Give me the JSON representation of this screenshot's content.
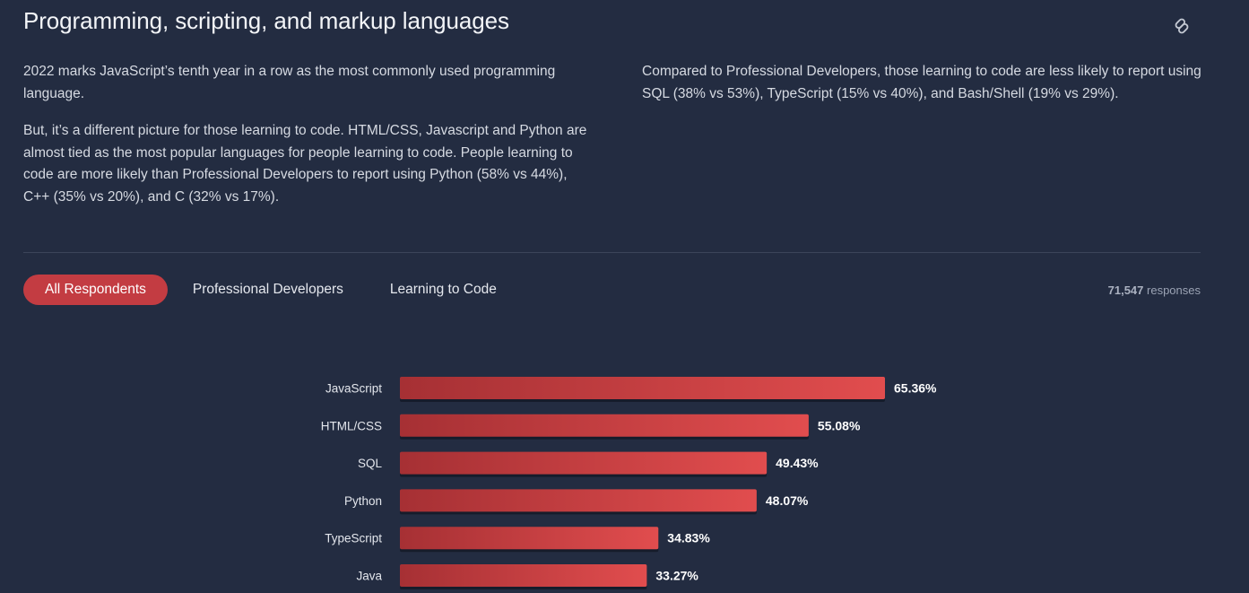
{
  "section": {
    "title": "Programming, scripting, and markup languages",
    "link_icon": "link-icon"
  },
  "text": {
    "left_paragraphs": [
      "2022 marks JavaScript’s tenth year in a row as the most commonly used programming language.",
      "But, it’s a different picture for those learning to code. HTML/CSS, Javascript and Python are almost tied as the most popular languages for people learning to code. People learning to code are more likely than Professional Developers to report using Python (58% vs 44%), C++ (35% vs 20%), and C (32% vs 17%)."
    ],
    "right_paragraphs": [
      "Compared to Professional Developers, those learning to code are less likely to report using SQL (38% vs 53%), TypeScript (15% vs 40%), and Bash/Shell (19% vs 29%)."
    ]
  },
  "tabs": [
    {
      "label": "All Respondents",
      "active": true
    },
    {
      "label": "Professional Developers",
      "active": false
    },
    {
      "label": "Learning to Code",
      "active": false
    }
  ],
  "responses": {
    "count": "71,547",
    "label": "responses"
  },
  "colors": {
    "background": "#232c41",
    "accent": "#c33c42",
    "bar_start": "#a63034",
    "bar_end": "#e14d4e"
  },
  "chart_data": {
    "type": "bar",
    "orientation": "horizontal",
    "categories": [
      "JavaScript",
      "HTML/CSS",
      "SQL",
      "Python",
      "TypeScript",
      "Java"
    ],
    "values": [
      65.36,
      55.08,
      49.43,
      48.07,
      34.83,
      33.27
    ],
    "value_suffix": "%",
    "xlim": [
      0,
      100
    ],
    "grid": false,
    "legend": "none"
  }
}
